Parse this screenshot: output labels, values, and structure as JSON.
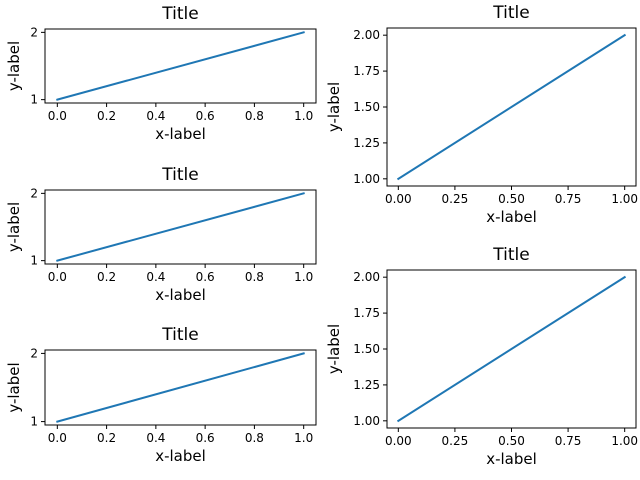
{
  "chart_data": [
    {
      "type": "line",
      "title": "Title",
      "xlabel": "x-label",
      "ylabel": "y-label",
      "xlim": [
        -0.05,
        1.05
      ],
      "ylim": [
        0.95,
        2.05
      ],
      "xticks": [
        0.0,
        0.2,
        0.4,
        0.6,
        0.8,
        1.0
      ],
      "xtick_labels": [
        "0.0",
        "0.2",
        "0.4",
        "0.6",
        "0.8",
        "1.0"
      ],
      "yticks": [
        1,
        2
      ],
      "ytick_labels": [
        "1",
        "2"
      ],
      "series": [
        {
          "x": [
            0,
            1
          ],
          "y": [
            1,
            2
          ],
          "color": "#1f77b4"
        }
      ],
      "grid": false
    },
    {
      "type": "line",
      "title": "Title",
      "xlabel": "x-label",
      "ylabel": "y-label",
      "xlim": [
        -0.05,
        1.05
      ],
      "ylim": [
        0.95,
        2.05
      ],
      "xticks": [
        0.0,
        0.2,
        0.4,
        0.6,
        0.8,
        1.0
      ],
      "xtick_labels": [
        "0.0",
        "0.2",
        "0.4",
        "0.6",
        "0.8",
        "1.0"
      ],
      "yticks": [
        1,
        2
      ],
      "ytick_labels": [
        "1",
        "2"
      ],
      "series": [
        {
          "x": [
            0,
            1
          ],
          "y": [
            1,
            2
          ],
          "color": "#1f77b4"
        }
      ],
      "grid": false
    },
    {
      "type": "line",
      "title": "Title",
      "xlabel": "x-label",
      "ylabel": "y-label",
      "xlim": [
        -0.05,
        1.05
      ],
      "ylim": [
        0.95,
        2.05
      ],
      "xticks": [
        0.0,
        0.2,
        0.4,
        0.6,
        0.8,
        1.0
      ],
      "xtick_labels": [
        "0.0",
        "0.2",
        "0.4",
        "0.6",
        "0.8",
        "1.0"
      ],
      "yticks": [
        1,
        2
      ],
      "ytick_labels": [
        "1",
        "2"
      ],
      "series": [
        {
          "x": [
            0,
            1
          ],
          "y": [
            1,
            2
          ],
          "color": "#1f77b4"
        }
      ],
      "grid": false
    },
    {
      "type": "line",
      "title": "Title",
      "xlabel": "x-label",
      "ylabel": "y-label",
      "xlim": [
        -0.05,
        1.05
      ],
      "ylim": [
        0.95,
        2.05
      ],
      "xticks": [
        0.0,
        0.25,
        0.5,
        0.75,
        1.0
      ],
      "xtick_labels": [
        "0.00",
        "0.25",
        "0.50",
        "0.75",
        "1.00"
      ],
      "yticks": [
        1.0,
        1.25,
        1.5,
        1.75,
        2.0
      ],
      "ytick_labels": [
        "1.00",
        "1.25",
        "1.50",
        "1.75",
        "2.00"
      ],
      "series": [
        {
          "x": [
            0,
            1
          ],
          "y": [
            1,
            2
          ],
          "color": "#1f77b4"
        }
      ],
      "grid": false
    },
    {
      "type": "line",
      "title": "Title",
      "xlabel": "x-label",
      "ylabel": "y-label",
      "xlim": [
        -0.05,
        1.05
      ],
      "ylim": [
        0.95,
        2.05
      ],
      "xticks": [
        0.0,
        0.25,
        0.5,
        0.75,
        1.0
      ],
      "xtick_labels": [
        "0.00",
        "0.25",
        "0.50",
        "0.75",
        "1.00"
      ],
      "yticks": [
        1.0,
        1.25,
        1.5,
        1.75,
        2.0
      ],
      "ytick_labels": [
        "1.00",
        "1.25",
        "1.50",
        "1.75",
        "2.00"
      ],
      "series": [
        {
          "x": [
            0,
            1
          ],
          "y": [
            1,
            2
          ],
          "color": "#1f77b4"
        }
      ],
      "grid": false
    }
  ]
}
